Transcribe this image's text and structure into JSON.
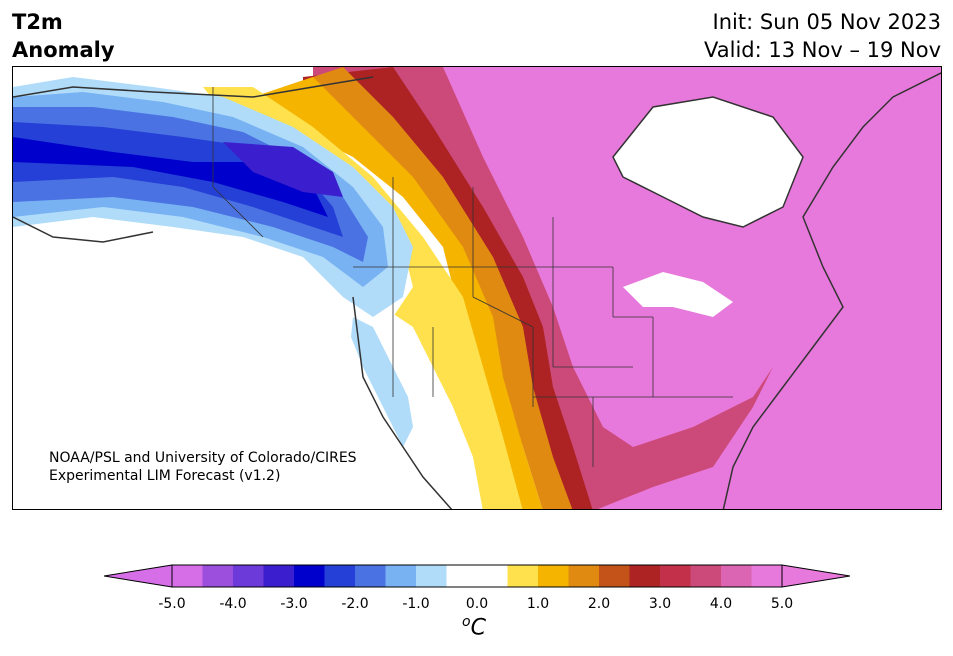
{
  "title": {
    "line1": "T2m",
    "line2": "Anomaly"
  },
  "period": {
    "init": "Init: Sun 05 Nov 2023",
    "valid": "Valid: 13 Nov – 19 Nov"
  },
  "credit": {
    "line1": "NOAA/PSL and University of Colorado/CIRES",
    "line2": "Experimental LIM Forecast (v1.2)"
  },
  "colorbar": {
    "units_base": "C",
    "units_sup": "o",
    "colors": [
      "#d66ee8",
      "#9b4fdc",
      "#6b3ad8",
      "#3b1fce",
      "#0000cc",
      "#2540d6",
      "#4a72e2",
      "#78b2f2",
      "#b0dcfa",
      "#ffffff",
      "#ffffff",
      "#ffe14d",
      "#f4b400",
      "#e08a12",
      "#c4531a",
      "#ad2222",
      "#c2304a",
      "#cc4a7a",
      "#db65b2",
      "#e879dc"
    ],
    "ticks": [
      "-5.0",
      "-4.0",
      "-3.0",
      "-2.0",
      "-1.0",
      "0.0",
      "1.0",
      "2.0",
      "3.0",
      "4.0",
      "5.0"
    ],
    "min_color": "#d66ee8",
    "max_color": "#e879dc"
  }
}
